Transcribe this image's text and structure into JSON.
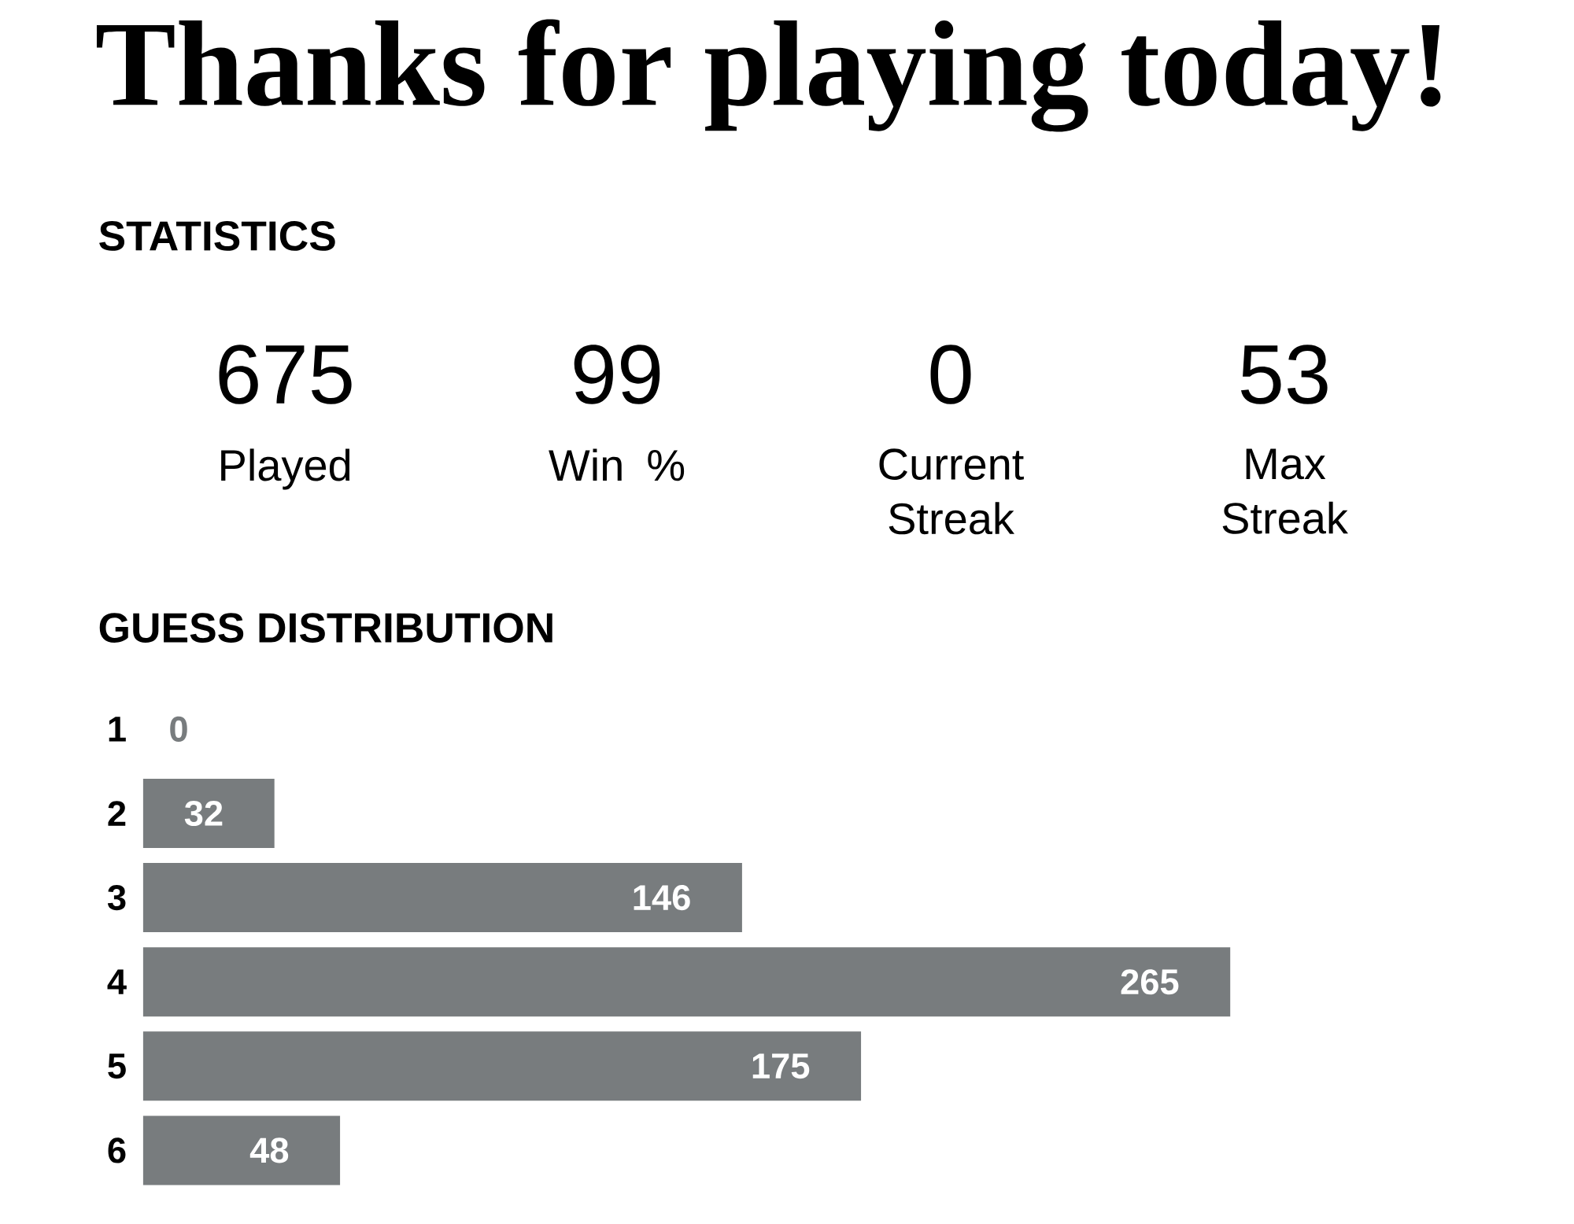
{
  "chart_data": [
    {
      "type": "other",
      "title": "Thanks for playing today!",
      "subtitle": "STATISTICS",
      "annotations": [
        "675",
        "Played",
        "99",
        "Win %",
        "0",
        "Current Streak",
        "53",
        "Max Streak"
      ]
    },
    {
      "type": "bar",
      "orientation": "horizontal",
      "title": "GUESS DISTRIBUTION",
      "categories": [
        "1",
        "2",
        "3",
        "4",
        "5",
        "6"
      ],
      "values": [
        0,
        32,
        146,
        265,
        175,
        48
      ],
      "color": "#787c7e",
      "data_labels": true
    }
  ]
}
